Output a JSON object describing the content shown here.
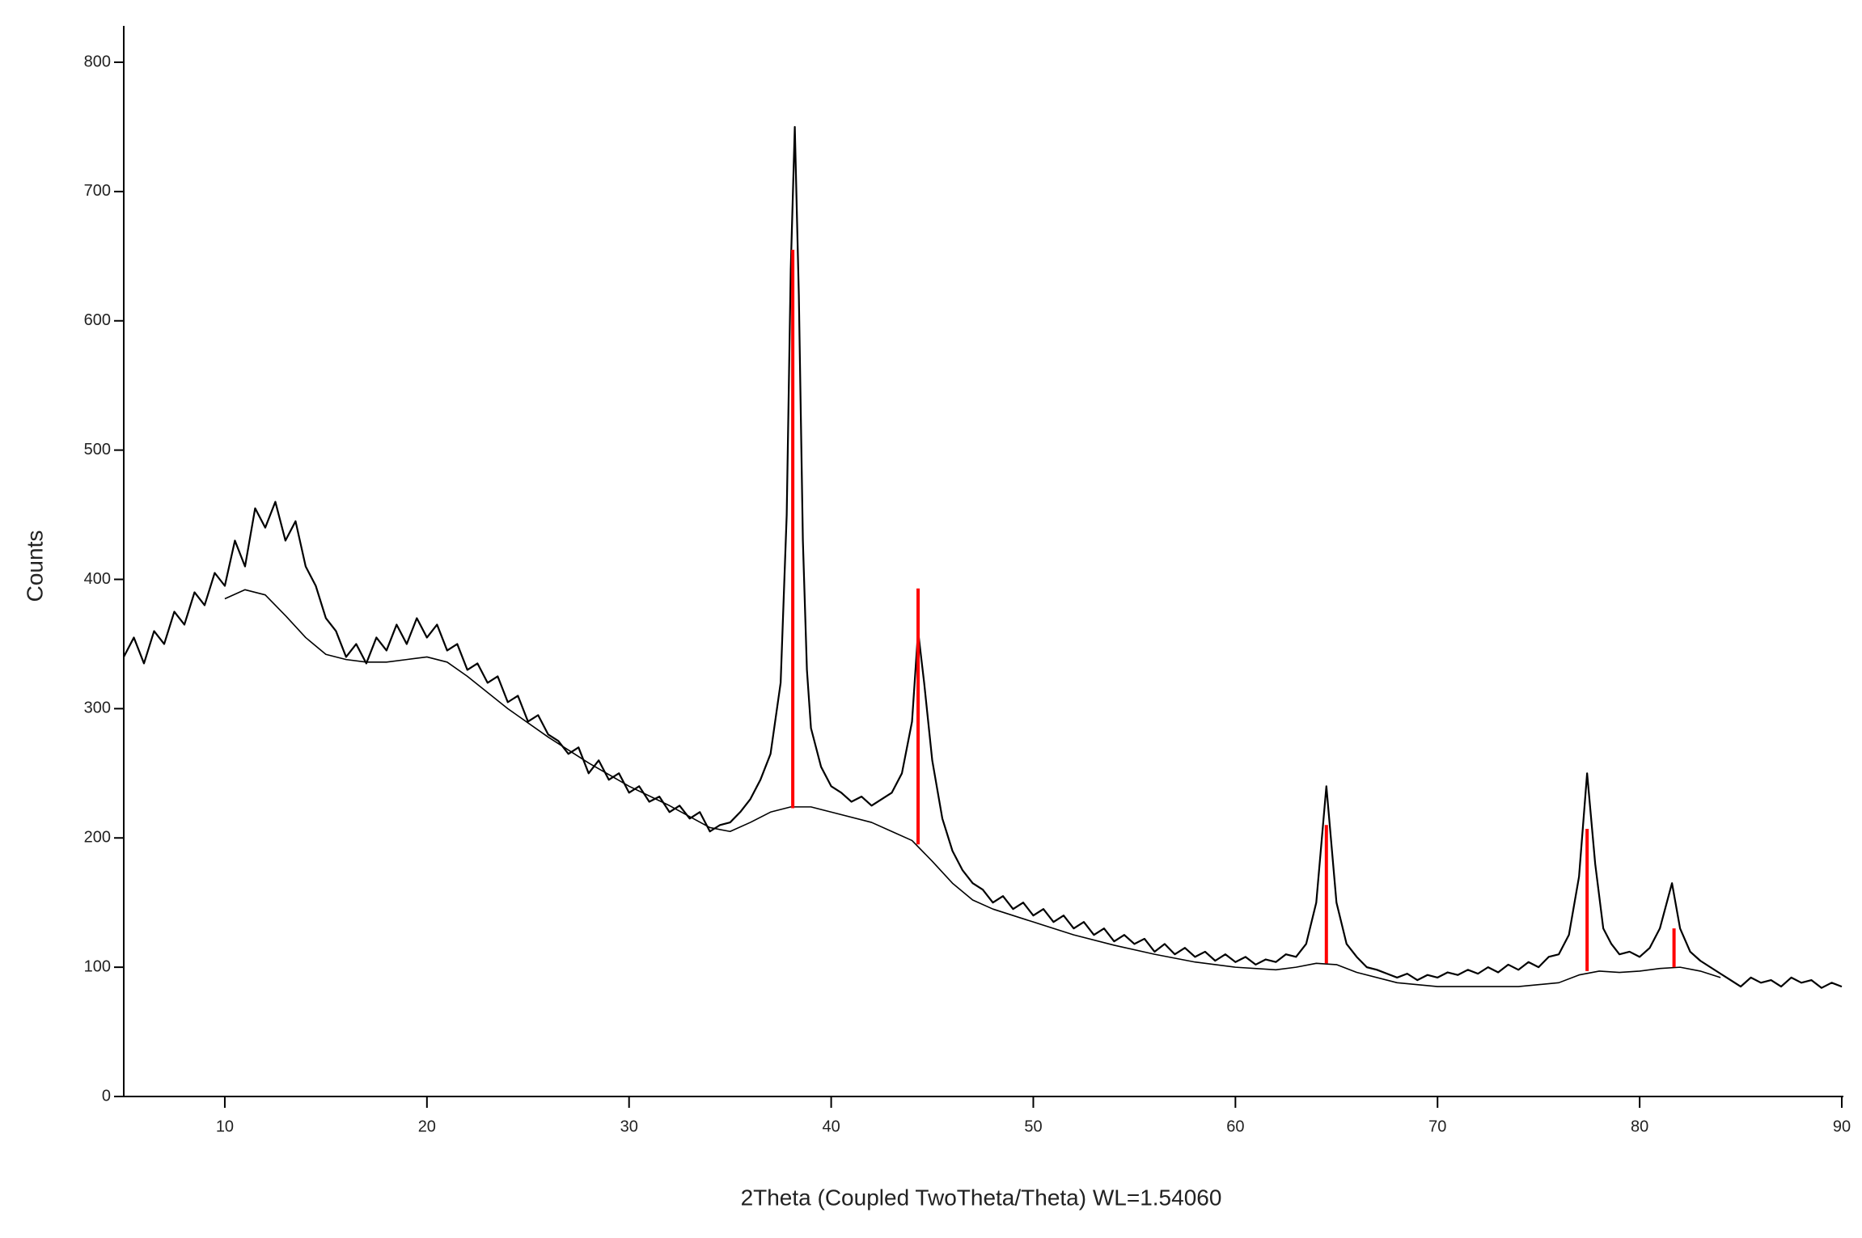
{
  "chart_data": {
    "type": "line",
    "x_label": "2Theta (Coupled TwoTheta/Theta) WL=1.54060",
    "y_label": "Counts",
    "xlim": [
      5,
      90
    ],
    "ylim": [
      0,
      800
    ],
    "xticks": [
      10,
      20,
      30,
      40,
      50,
      60,
      70,
      80,
      90
    ],
    "yticks": [
      0,
      100,
      200,
      300,
      400,
      500,
      600,
      700,
      800
    ],
    "series": [
      {
        "color": "#000000",
        "x": [
          5,
          5.5,
          6,
          6.5,
          7,
          7.5,
          8,
          8.5,
          9,
          9.5,
          10,
          10.5,
          11,
          11.5,
          12,
          12.5,
          13,
          13.5,
          14,
          14.5,
          15,
          15.5,
          16,
          16.5,
          17,
          17.5,
          18,
          18.5,
          19,
          19.5,
          20,
          20.5,
          21,
          21.5,
          22,
          22.5,
          23,
          23.5,
          24,
          24.5,
          25,
          25.5,
          26,
          26.5,
          27,
          27.5,
          28,
          28.5,
          29,
          29.5,
          30,
          30.5,
          31,
          31.5,
          32,
          32.5,
          33,
          33.5,
          34,
          34.5,
          35,
          35.5,
          36,
          36.5,
          37,
          37.5,
          37.8,
          38,
          38.2,
          38.4,
          38.6,
          38.8,
          39,
          39.5,
          40,
          40.5,
          41,
          41.5,
          42,
          42.5,
          43,
          43.5,
          44,
          44.3,
          44.6,
          45,
          45.5,
          46,
          46.5,
          47,
          47.5,
          48,
          48.5,
          49,
          49.5,
          50,
          50.5,
          51,
          51.5,
          52,
          52.5,
          53,
          53.5,
          54,
          54.5,
          55,
          55.5,
          56,
          56.5,
          57,
          57.5,
          58,
          58.5,
          59,
          59.5,
          60,
          60.5,
          61,
          61.5,
          62,
          62.5,
          63,
          63.5,
          64,
          64.5,
          65,
          65.5,
          66,
          66.5,
          67,
          67.5,
          68,
          68.5,
          69,
          69.5,
          70,
          70.5,
          71,
          71.5,
          72,
          72.5,
          73,
          73.5,
          74,
          74.5,
          75,
          75.5,
          76,
          76.5,
          77,
          77.4,
          77.8,
          78.2,
          78.6,
          79,
          79.5,
          80,
          80.5,
          81,
          81.6,
          82,
          82.5,
          83,
          83.5,
          84,
          84.5,
          85,
          85.5,
          86,
          86.5,
          87,
          87.5,
          88,
          88.5,
          89,
          89.5,
          90
        ],
        "values": [
          340,
          355,
          335,
          360,
          350,
          375,
          365,
          390,
          380,
          405,
          395,
          430,
          410,
          455,
          440,
          460,
          430,
          445,
          410,
          395,
          370,
          360,
          340,
          350,
          335,
          355,
          345,
          365,
          350,
          370,
          355,
          365,
          345,
          350,
          330,
          335,
          320,
          325,
          305,
          310,
          290,
          295,
          280,
          275,
          265,
          270,
          250,
          260,
          245,
          250,
          235,
          240,
          228,
          232,
          220,
          225,
          215,
          220,
          205,
          210,
          212,
          220,
          230,
          245,
          265,
          320,
          450,
          640,
          750,
          620,
          430,
          330,
          285,
          255,
          240,
          235,
          228,
          232,
          225,
          230,
          235,
          250,
          290,
          360,
          320,
          260,
          215,
          190,
          175,
          165,
          160,
          150,
          155,
          145,
          150,
          140,
          145,
          135,
          140,
          130,
          135,
          125,
          130,
          120,
          125,
          118,
          122,
          112,
          118,
          110,
          115,
          108,
          112,
          105,
          110,
          104,
          108,
          102,
          106,
          104,
          110,
          108,
          118,
          150,
          240,
          150,
          118,
          108,
          100,
          98,
          95,
          92,
          95,
          90,
          94,
          92,
          96,
          94,
          98,
          95,
          100,
          96,
          102,
          98,
          104,
          100,
          108,
          110,
          125,
          170,
          250,
          180,
          130,
          118,
          110,
          112,
          108,
          115,
          130,
          165,
          130,
          112,
          105,
          100,
          95,
          90,
          85,
          92,
          88,
          90,
          85,
          92,
          88,
          90,
          84,
          88,
          85
        ]
      },
      {
        "color": "#000000",
        "x": [
          10,
          11,
          12,
          13,
          14,
          15,
          16,
          17,
          18,
          19,
          20,
          21,
          22,
          24,
          26,
          28,
          30,
          32,
          34,
          35,
          36,
          37,
          38,
          39,
          40,
          42,
          43,
          44,
          45,
          46,
          47,
          48,
          50,
          52,
          54,
          56,
          58,
          60,
          62,
          63,
          64,
          65,
          66,
          68,
          70,
          72,
          74,
          76,
          77,
          78,
          79,
          80,
          81,
          82,
          83,
          84
        ],
        "values": [
          385,
          392,
          388,
          372,
          355,
          342,
          338,
          336,
          336,
          338,
          340,
          336,
          325,
          300,
          278,
          258,
          240,
          225,
          208,
          205,
          212,
          220,
          224,
          224,
          220,
          212,
          205,
          198,
          182,
          165,
          152,
          145,
          135,
          125,
          117,
          110,
          104,
          100,
          98,
          100,
          103,
          102,
          96,
          88,
          85,
          85,
          85,
          88,
          94,
          97,
          96,
          97,
          99,
          100,
          97,
          92
        ]
      }
    ],
    "sticks": {
      "color": "#ff0000",
      "x": [
        38.1,
        44.3,
        64.5,
        77.4,
        81.7
      ],
      "values": [
        655,
        393,
        210,
        207,
        130
      ],
      "bases": [
        223,
        195,
        103,
        97,
        100
      ]
    }
  }
}
